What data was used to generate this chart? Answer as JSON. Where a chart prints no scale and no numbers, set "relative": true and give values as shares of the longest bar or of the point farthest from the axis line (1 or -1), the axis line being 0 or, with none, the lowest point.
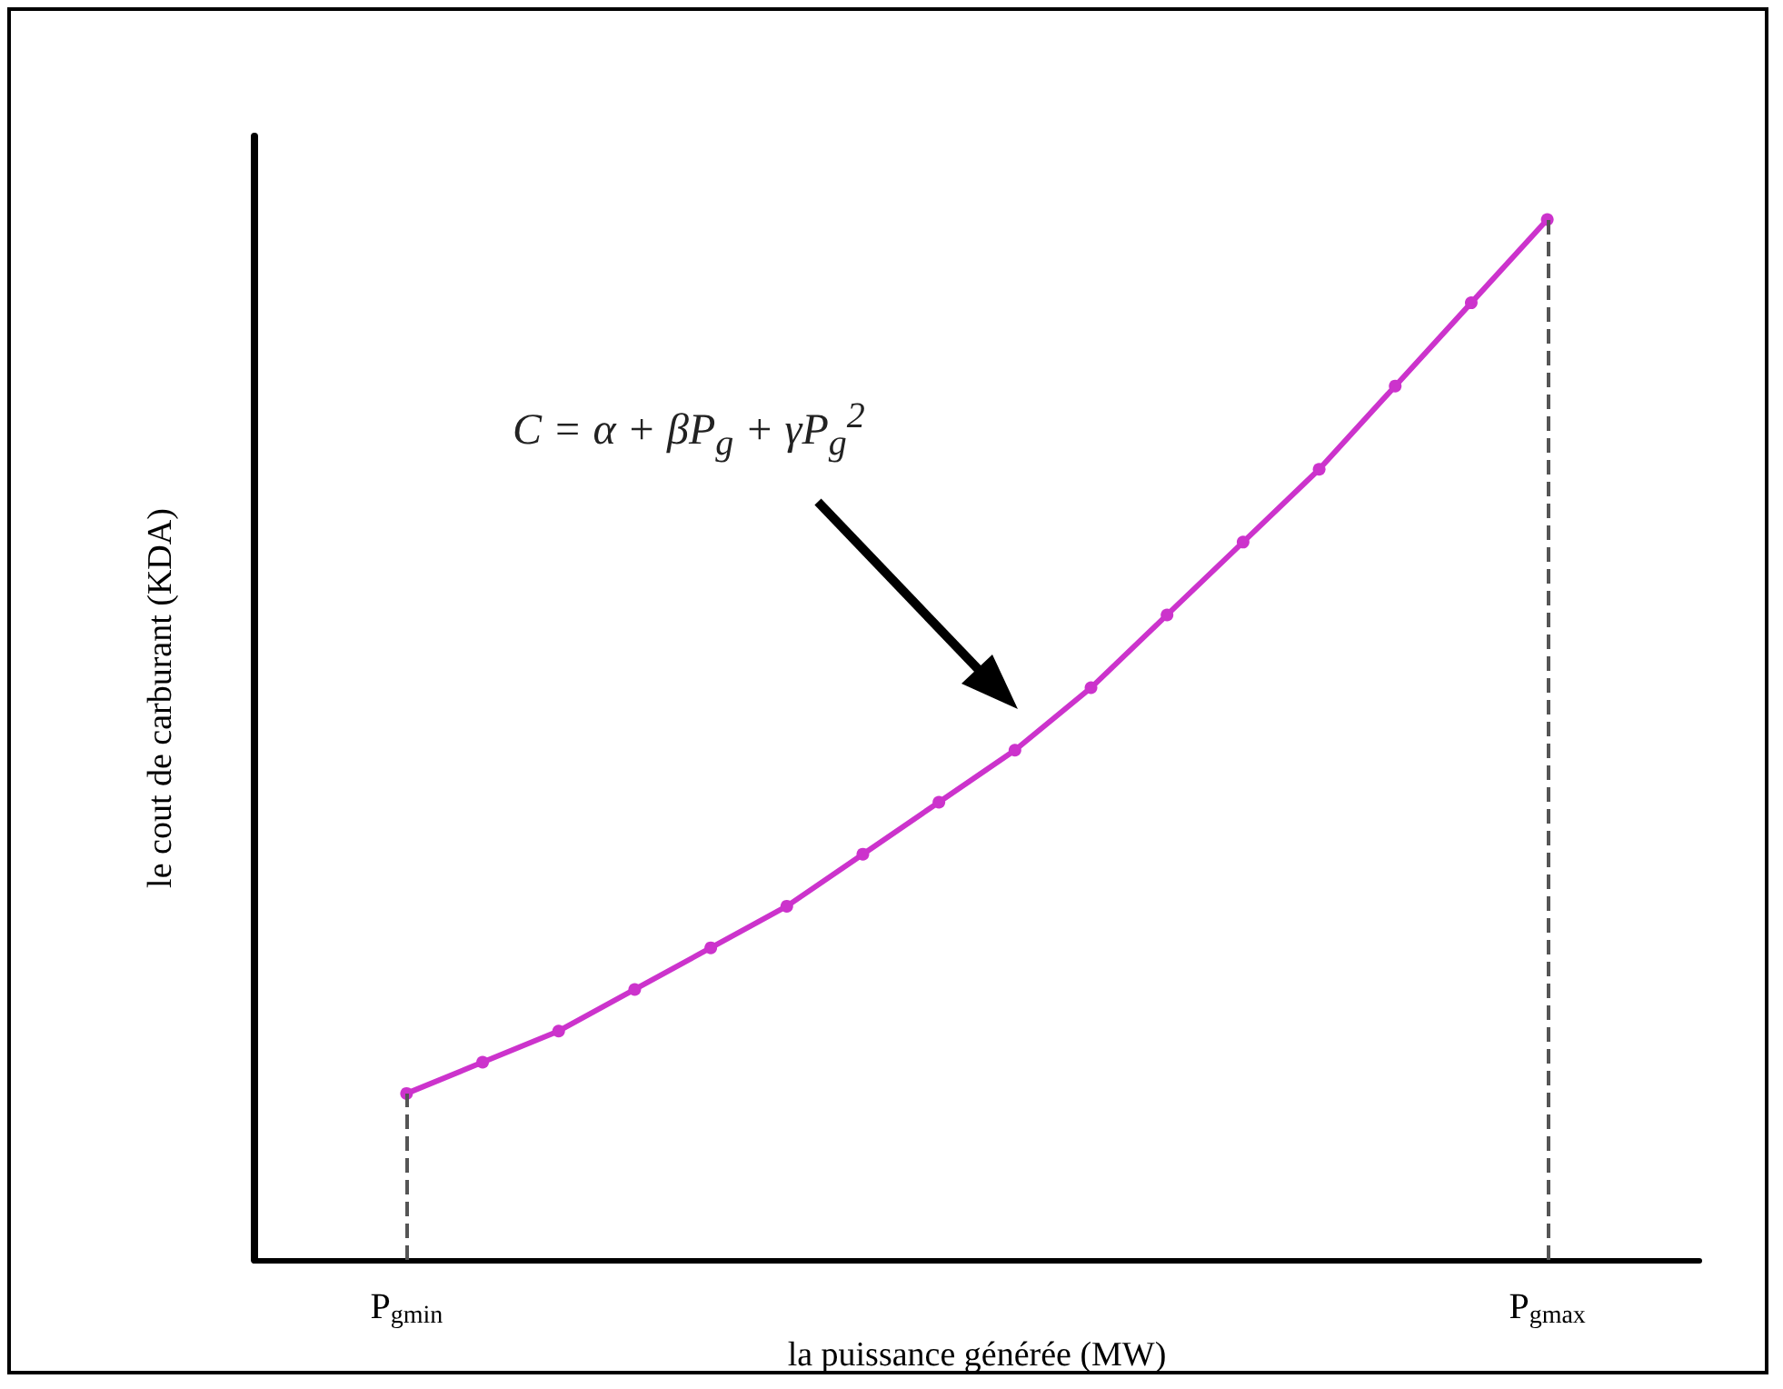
{
  "chart_data": {
    "type": "line",
    "relative": true,
    "xlabel": "la puissance générée (MW)",
    "ylabel": "le cout de carburant (KDA)",
    "categories": [
      null,
      null,
      "P$_{gmin}$",
      null,
      null,
      null,
      null,
      null,
      null,
      null,
      null,
      null,
      null,
      null,
      null,
      null,
      null,
      "P$_{gmax}$",
      null,
      null
    ],
    "series": [
      {
        "color": "#cc33cc",
        "values": [
          null,
          null,
          0.16,
          0.19,
          0.22,
          0.26,
          0.3,
          0.34,
          0.39,
          0.44,
          0.49,
          0.55,
          0.62,
          0.69,
          0.76,
          0.84,
          0.92,
          1,
          null,
          null
        ]
      }
    ],
    "marker": "circle",
    "line_style": "solid",
    "ref_lines": [
      {
        "axis": "x",
        "value": "P$_{gmin}$",
        "color": "#555555",
        "line_style": "dashed"
      },
      {
        "axis": "x",
        "value": "P$_{gmax}$",
        "color": "#555555",
        "line_style": "dashed"
      }
    ],
    "annotations": [
      "C = α + βP$_{g}$ + γP$_{g}$$^{2}$"
    ]
  }
}
